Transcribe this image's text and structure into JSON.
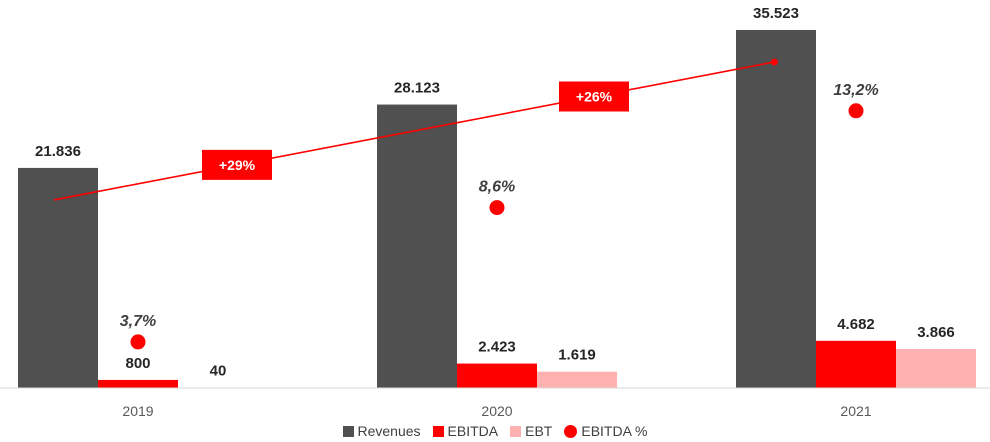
{
  "chart_data": {
    "type": "bar",
    "categories": [
      "2019",
      "2020",
      "2021"
    ],
    "series": [
      {
        "name": "Revenues",
        "values": [
          21836,
          28123,
          35523
        ],
        "labels": [
          "21.836",
          "28.123",
          "35.523"
        ],
        "color": "#505050"
      },
      {
        "name": "EBITDA",
        "values": [
          800,
          2423,
          4682
        ],
        "labels": [
          "800",
          "2.423",
          "4.682"
        ],
        "color": "#ff0000"
      },
      {
        "name": "EBT",
        "values": [
          40,
          1619,
          3866
        ],
        "labels": [
          "40",
          "1.619",
          "3.866"
        ],
        "color": "#ffb0b0"
      }
    ],
    "ebitda_margin": {
      "name": "EBITDA %",
      "values": [
        3.7,
        8.6,
        13.2
      ],
      "labels": [
        "3,7%",
        "8,6%",
        "13,2%"
      ],
      "color": "#ff0000"
    },
    "growth": [
      {
        "label": "+29%",
        "from": "2019",
        "to": "2020"
      },
      {
        "label": "+26%",
        "from": "2020",
        "to": "2021"
      }
    ],
    "ylim": [
      0,
      38000
    ],
    "grid": false,
    "legend_position": "bottom"
  }
}
